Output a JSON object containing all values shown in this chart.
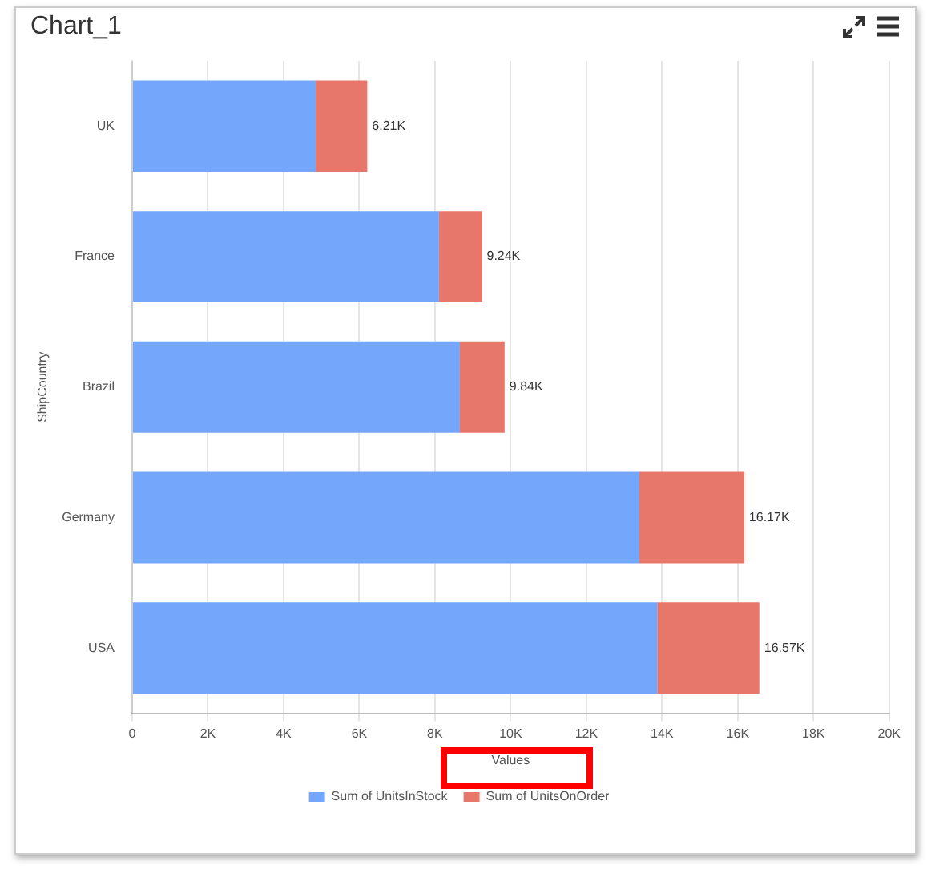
{
  "chart_data": {
    "type": "bar",
    "title": "Chart_1",
    "orientation": "horizontal",
    "stacked": true,
    "xlabel": "Values",
    "ylabel": "ShipCountry",
    "categories": [
      "UK",
      "France",
      "Brazil",
      "Germany",
      "USA"
    ],
    "series": [
      {
        "name": "Sum of UnitsInStock",
        "color": "#74a7fc",
        "values": [
          4850,
          8090,
          8640,
          13400,
          13870
        ]
      },
      {
        "name": "Sum of UnitsOnOrder",
        "color": "#e8776b",
        "values": [
          1360,
          1150,
          1200,
          2770,
          2700
        ]
      }
    ],
    "totals": [
      "6.21K",
      "9.24K",
      "9.84K",
      "16.17K",
      "16.57K"
    ],
    "xlim": [
      0,
      20000
    ],
    "xticks": [
      {
        "value": 0,
        "label": "0"
      },
      {
        "value": 2000,
        "label": "2K"
      },
      {
        "value": 4000,
        "label": "4K"
      },
      {
        "value": 6000,
        "label": "6K"
      },
      {
        "value": 8000,
        "label": "8K"
      },
      {
        "value": 10000,
        "label": "10K"
      },
      {
        "value": 12000,
        "label": "12K"
      },
      {
        "value": 14000,
        "label": "14K"
      },
      {
        "value": 16000,
        "label": "16K"
      },
      {
        "value": 18000,
        "label": "18K"
      },
      {
        "value": 20000,
        "label": "20K"
      }
    ],
    "grid": "x",
    "legend": "bottom"
  }
}
